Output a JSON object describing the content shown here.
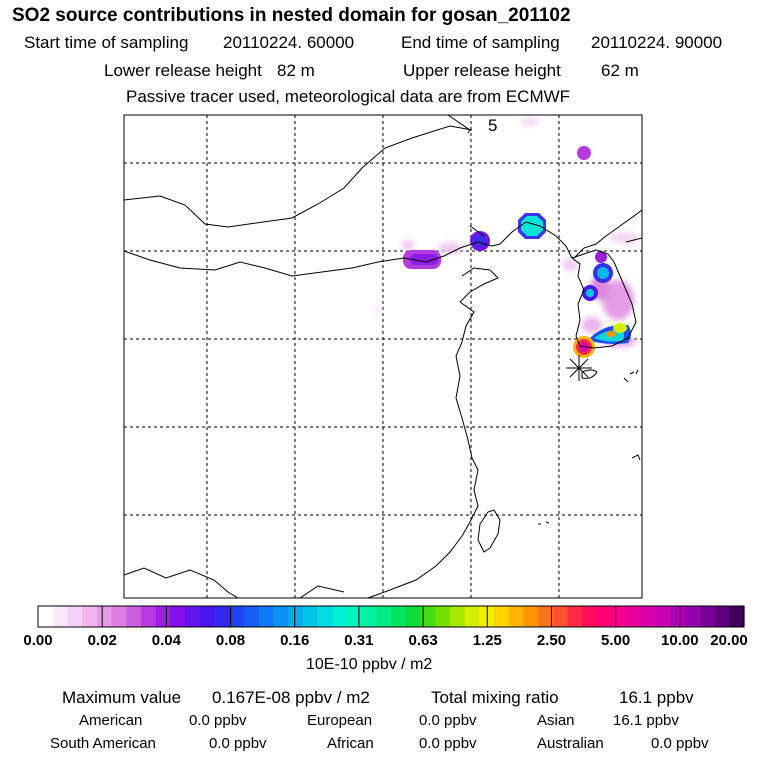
{
  "chart_data": {
    "type": "heatmap",
    "title": "SO2 source contributions in nested domain for gosan_201102",
    "start_label": "Start time of sampling",
    "start_value": "20110224. 60000",
    "end_label": "End time of sampling",
    "end_value": "20110224. 90000",
    "lower_label": "Lower release height",
    "lower_value": "82 m",
    "upper_label": "Upper release height",
    "upper_value": "62 m",
    "note": "Passive tracer used, meteorological data are from ECMWF",
    "panel_label": "5",
    "colorbar": {
      "ticks": [
        "0.00",
        "0.02",
        "0.04",
        "0.08",
        "0.16",
        "0.31",
        "0.63",
        "1.25",
        "2.50",
        "5.00",
        "10.00",
        "20.00"
      ],
      "unit": "10E-10 ppbv / m2",
      "colors": [
        "#ffffff",
        "#fbe8fb",
        "#f6d0f6",
        "#f0b6f0",
        "#e79be9",
        "#dc7fe3",
        "#cc5fe0",
        "#b93ae2",
        "#a11de6",
        "#8410ea",
        "#6414ed",
        "#4a16f0",
        "#3129f2",
        "#1f42f4",
        "#155df5",
        "#0f78f5",
        "#0b93f3",
        "#08aaf0",
        "#04c4ea",
        "#00dce2",
        "#00f0d6",
        "#00f5bd",
        "#00f2a0",
        "#00ec80",
        "#00e560",
        "#10dc38",
        "#42dc18",
        "#74e000",
        "#a6e800",
        "#d4ef00",
        "#f5ee00",
        "#ffd400",
        "#ffb400",
        "#ff9400",
        "#ff7218",
        "#ff5030",
        "#ff2a44",
        "#ff0e5c",
        "#fc0074",
        "#f4008a",
        "#e8009c",
        "#d800aa",
        "#c400b2",
        "#ae00b4",
        "#9400ae",
        "#780098",
        "#5c007e",
        "#3c0058"
      ]
    },
    "max_label": "Maximum value",
    "max_value": "0.167E-08 ppbv / m2",
    "total_label": "Total mixing ratio",
    "total_value": "16.1 ppbv",
    "regions": [
      {
        "name": "American",
        "value": "0.0 ppbv"
      },
      {
        "name": "European",
        "value": "0.0 ppbv"
      },
      {
        "name": "Asian",
        "value": "16.1 ppbv"
      },
      {
        "name": "South American",
        "value": "0.0 ppbv"
      },
      {
        "name": "African",
        "value": "0.0 ppbv"
      },
      {
        "name": "Australian",
        "value": "0.0 ppbv"
      }
    ]
  }
}
